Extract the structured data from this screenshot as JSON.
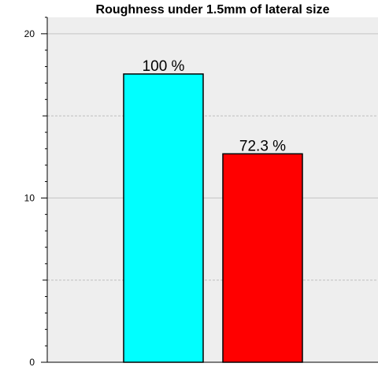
{
  "chart_data": {
    "type": "bar",
    "title": "Roughness under 1.5mm of lateral size",
    "xlabel": "",
    "ylabel": "",
    "ylim": [
      0,
      21
    ],
    "yticks": [
      "0",
      "10",
      "20"
    ],
    "major_tick_values": [
      0,
      10,
      20
    ],
    "minor_gridline_values": [
      5,
      15
    ],
    "grid": true,
    "legend": "none",
    "plot_background": "#eeeeee",
    "values": [
      17.55,
      12.69
    ],
    "data_labels": [
      "100 %",
      "72.3 %"
    ],
    "colors": [
      "#00ffff",
      "#ff0000"
    ]
  }
}
